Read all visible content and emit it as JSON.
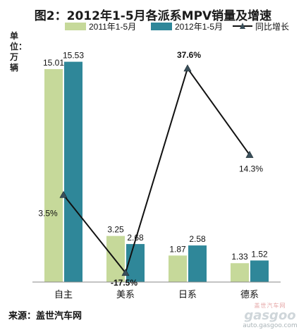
{
  "title": "图2：2012年1-5月各派系MPV销量及增速",
  "unit_label": "单位：万辆",
  "source": "来源：盖世汽车网",
  "watermark": {
    "cn": "盖世汽车网",
    "logo": "gasgoo",
    "url": "auto.gasgoo.com"
  },
  "chart_data": {
    "type": "bar",
    "title": "图2：2012年1-5月各派系MPV销量及增速",
    "xlabel": "",
    "ylabel": "单位：万辆",
    "ylim": [
      0,
      17
    ],
    "categories": [
      "自主",
      "美系",
      "日系",
      "德系"
    ],
    "legend_position": "top",
    "grid": false,
    "series": [
      {
        "name": "2011年1-5月",
        "type": "bar",
        "color": "#c6d99a",
        "values": [
          15.01,
          3.25,
          1.87,
          1.33
        ],
        "labels": [
          "15.01",
          "3.25",
          "1.87",
          "1.33"
        ]
      },
      {
        "name": "2012年1-5月",
        "type": "bar",
        "color": "#2f8799",
        "values": [
          15.53,
          2.68,
          2.58,
          1.52
        ],
        "labels": [
          "15.53",
          "2.68",
          "2.58",
          "1.52"
        ]
      },
      {
        "name": "同比增长",
        "type": "line",
        "axis": "secondary",
        "color": "#111111",
        "values": [
          3.5,
          -17.5,
          37.6,
          14.3
        ],
        "labels": [
          "3.5%",
          "-17.5%",
          "37.6%",
          "14.3%"
        ],
        "label_colors": [
          "#111111",
          "#e02020",
          "#2a3ab0",
          "#111111"
        ]
      }
    ],
    "secondary_ylim": [
      -20,
      45
    ]
  }
}
